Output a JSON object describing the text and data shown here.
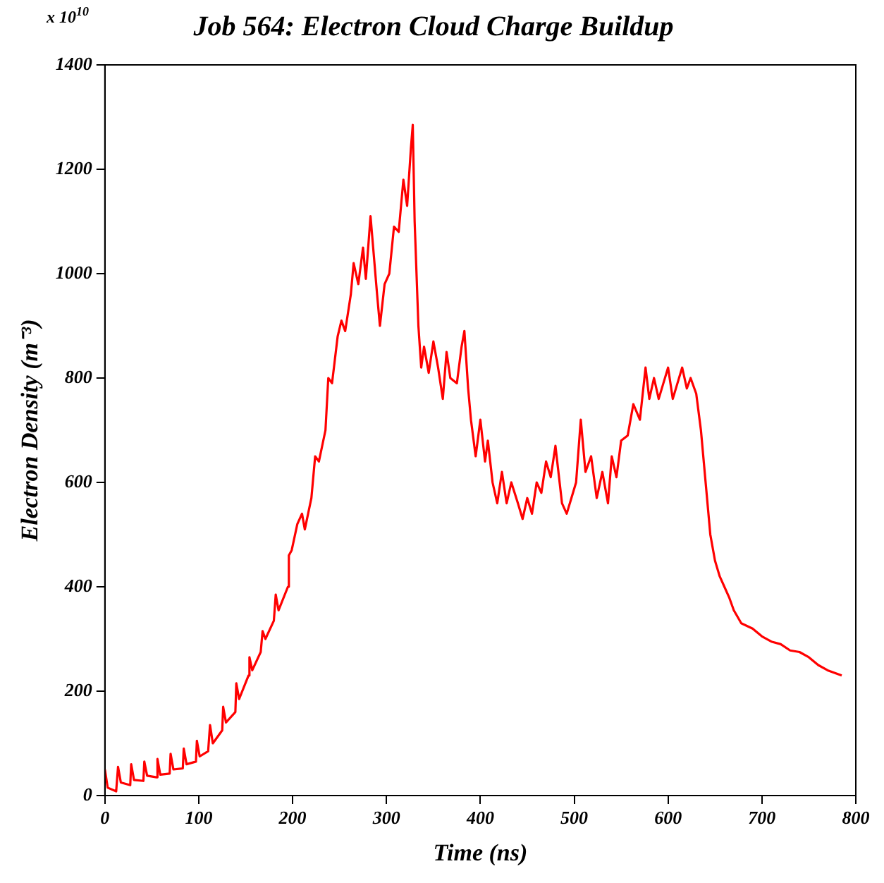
{
  "chart_data": {
    "type": "line",
    "title": "Job 564: Electron Cloud Charge Buildup",
    "xlabel": "Time (ns)",
    "ylabel": "Electron Density (m⁻³)",
    "annotations": [
      "x 10$^{10}$"
    ],
    "x": [
      0,
      3,
      12,
      14,
      17,
      27,
      28,
      31,
      41,
      42,
      45,
      55,
      56,
      59,
      69,
      70,
      73,
      83,
      84,
      87,
      97,
      98,
      101,
      110,
      112,
      115,
      125,
      126,
      129,
      139,
      140,
      143,
      153,
      154,
      157,
      166,
      168,
      171,
      180,
      182,
      185,
      195,
      196,
      199,
      205,
      210,
      213,
      220,
      224,
      228,
      235,
      238,
      242,
      248,
      252,
      256,
      262,
      265,
      270,
      275,
      278,
      283,
      290,
      293,
      298,
      303,
      308,
      313,
      318,
      322,
      326,
      328,
      330,
      334,
      337,
      340,
      345,
      350,
      355,
      360,
      364,
      368,
      375,
      380,
      383,
      387,
      390,
      395,
      400,
      405,
      408,
      413,
      418,
      423,
      428,
      433,
      440,
      445,
      450,
      455,
      460,
      465,
      470,
      475,
      480,
      487,
      492,
      497,
      502,
      507,
      512,
      518,
      524,
      530,
      536,
      540,
      545,
      550,
      557,
      563,
      570,
      576,
      580,
      585,
      590,
      595,
      600,
      605,
      610,
      615,
      620,
      624,
      630,
      635,
      640,
      645,
      650,
      655,
      660,
      665,
      670,
      678,
      690,
      700,
      710,
      720,
      730,
      740,
      750,
      760,
      770,
      785
    ],
    "series": [
      {
        "color": "#ff0000",
        "values": [
          50,
          15,
          8,
          55,
          25,
          20,
          60,
          30,
          28,
          65,
          38,
          35,
          70,
          40,
          42,
          80,
          50,
          52,
          90,
          60,
          65,
          105,
          75,
          85,
          135,
          100,
          125,
          170,
          140,
          160,
          215,
          185,
          230,
          265,
          240,
          275,
          315,
          300,
          335,
          385,
          355,
          400,
          460,
          470,
          520,
          540,
          510,
          570,
          650,
          640,
          700,
          800,
          790,
          880,
          910,
          890,
          960,
          1020,
          980,
          1050,
          990,
          1110,
          960,
          900,
          980,
          1000,
          1090,
          1080,
          1180,
          1130,
          1240,
          1285,
          1100,
          900,
          820,
          860,
          810,
          870,
          820,
          760,
          850,
          800,
          790,
          860,
          890,
          780,
          720,
          650,
          720,
          640,
          680,
          600,
          560,
          620,
          560,
          600,
          560,
          530,
          570,
          540,
          600,
          580,
          640,
          610,
          670,
          560,
          540,
          570,
          600,
          720,
          620,
          650,
          570,
          620,
          560,
          650,
          610,
          680,
          690,
          750,
          720,
          820,
          760,
          800,
          760,
          790,
          820,
          760,
          790,
          820,
          780,
          800,
          770,
          700,
          600,
          500,
          450,
          420,
          400,
          380,
          355,
          330,
          320,
          305,
          295,
          290,
          278,
          275,
          265,
          250,
          240,
          230
        ]
      }
    ],
    "xlim": [
      0,
      800
    ],
    "xticks": [
      0,
      100,
      200,
      300,
      400,
      500,
      600,
      700,
      800
    ],
    "ylim": [
      0,
      1400
    ],
    "yticks": [
      0,
      200,
      400,
      600,
      800,
      1000,
      1200,
      1400
    ],
    "grid": false,
    "legend": false,
    "marker": "none",
    "line_style": "solid"
  }
}
